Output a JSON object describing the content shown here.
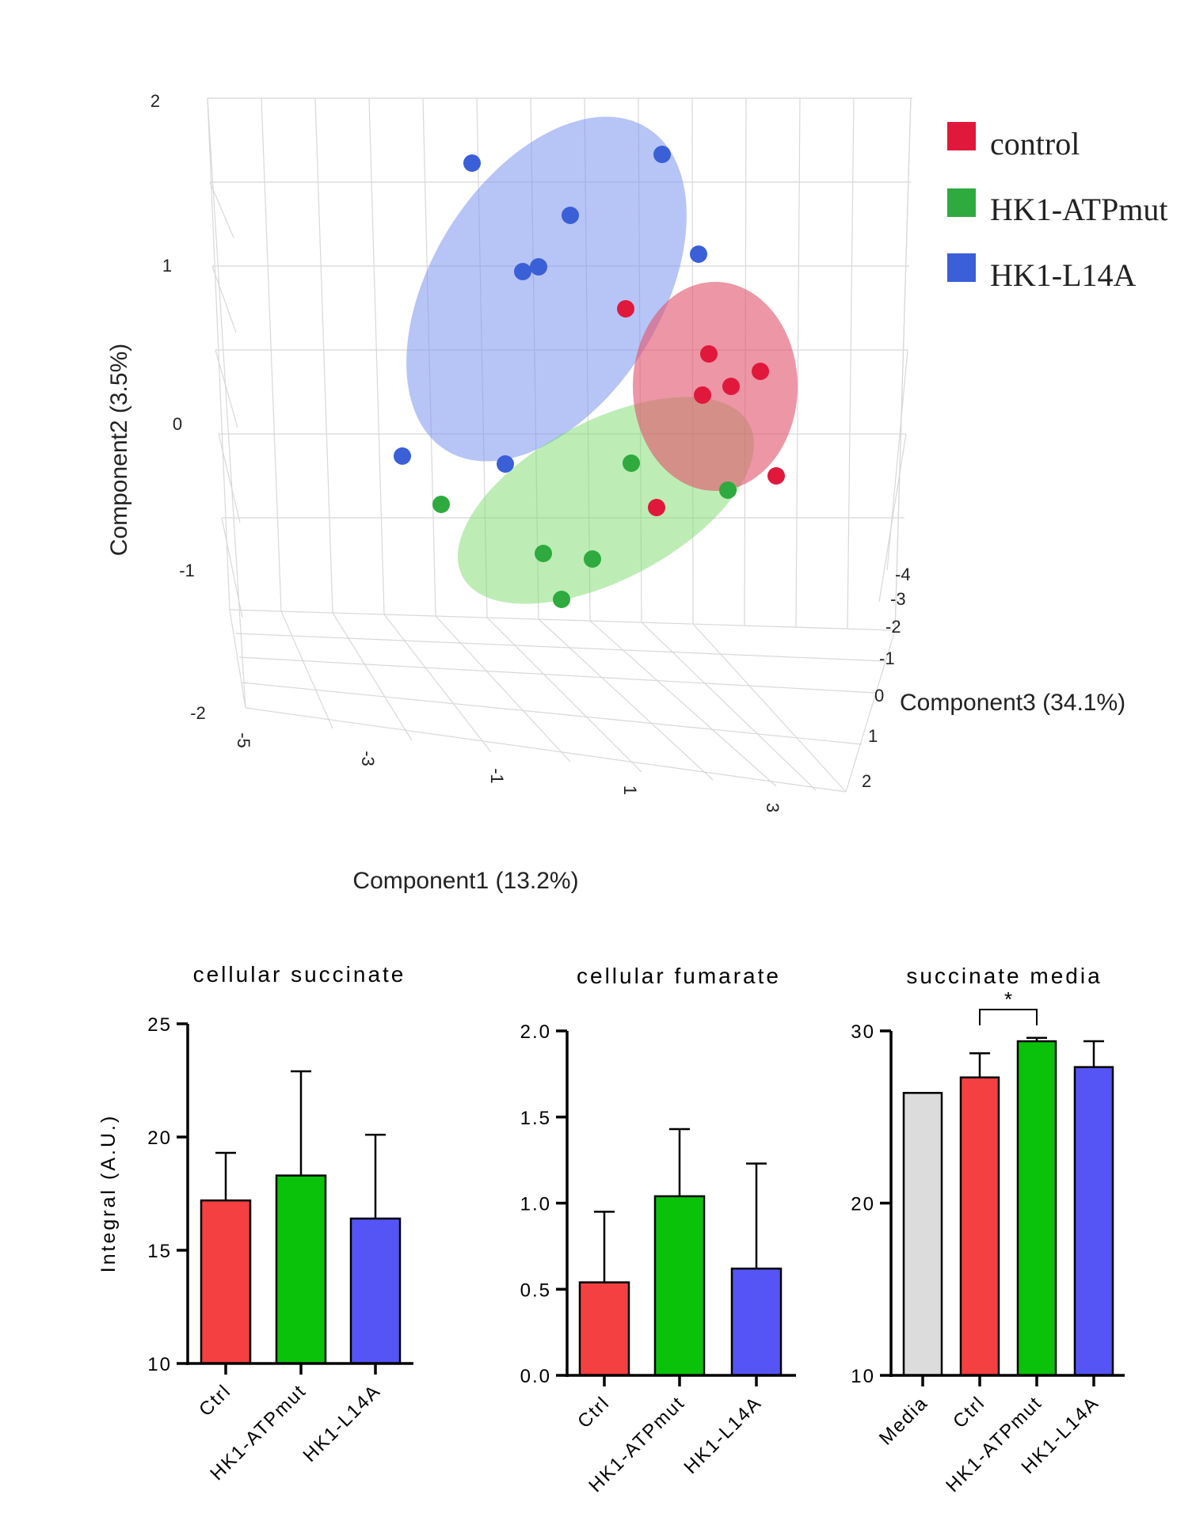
{
  "chart_data": [
    {
      "type": "scatter",
      "title": "",
      "xlabel": "Component1 (13.2%)",
      "ylabel": "Component2 (3.5%)",
      "zlabel": "Component3 (34.1%)",
      "x_ticks": [
        "-5",
        "-3",
        "-1",
        "1",
        "3"
      ],
      "y_ticks": [
        "2",
        "1",
        "0",
        "-1",
        "-2"
      ],
      "z_ticks": [
        "-4",
        "-3",
        "-2",
        "-1",
        "0",
        "1",
        "2"
      ],
      "legend": [
        "control",
        "HK1-ATPmut",
        "HK1-L14A"
      ],
      "colors": {
        "control": "#e0183c",
        "HK1-ATPmut": "#2eaa3e",
        "HK1-L14A": "#3a5fd6"
      },
      "series": [
        {
          "name": "HK1-L14A",
          "points": [
            [
              -1.8,
              1.7,
              -1.0
            ],
            [
              0.8,
              1.75,
              -1.2
            ],
            [
              -1.2,
              1.3,
              -1.0
            ],
            [
              -1.2,
              0.95,
              0.0
            ],
            [
              -1.4,
              0.95,
              -0.5
            ],
            [
              1.3,
              1.0,
              -1.0
            ],
            [
              -3.0,
              -0.2,
              1.0
            ],
            [
              -1.7,
              -0.2,
              0.0
            ]
          ]
        },
        {
          "name": "control",
          "points": [
            [
              0.2,
              0.75,
              -1.5
            ],
            [
              1.1,
              0.4,
              -0.5
            ],
            [
              1.2,
              0.2,
              -1.0
            ],
            [
              2.2,
              0.3,
              -2.0
            ],
            [
              1.0,
              0.15,
              0.5
            ],
            [
              1.8,
              -0.15,
              -3.0
            ],
            [
              0.5,
              -0.5,
              1.0
            ]
          ]
        },
        {
          "name": "HK1-ATPmut",
          "points": [
            [
              -2.4,
              -0.4,
              1.5
            ],
            [
              0.0,
              -0.15,
              0.5
            ],
            [
              1.5,
              -0.5,
              -0.5
            ],
            [
              -0.7,
              -0.75,
              1.5
            ],
            [
              -0.3,
              -0.85,
              1.0
            ],
            [
              -0.5,
              -1.0,
              2.0
            ]
          ]
        }
      ]
    },
    {
      "type": "bar",
      "title": "cellular succinate",
      "ylabel": "Integral (A.U.)",
      "categories": [
        "Ctrl",
        "HK1-ATPmut",
        "HK1-L14A"
      ],
      "values": [
        17.2,
        18.3,
        16.4
      ],
      "errors": [
        2.1,
        4.6,
        3.7
      ],
      "colors": [
        "#f44040",
        "#0ac20a",
        "#5555f5"
      ],
      "ylim": [
        10,
        25
      ],
      "yticks": [
        "10",
        "15",
        "20",
        "25"
      ]
    },
    {
      "type": "bar",
      "title": "cellular fumarate",
      "ylabel": "",
      "categories": [
        "Ctrl",
        "HK1-ATPmut",
        "HK1-L14A"
      ],
      "values": [
        0.54,
        1.04,
        0.62
      ],
      "errors": [
        0.41,
        0.39,
        0.61
      ],
      "colors": [
        "#f44040",
        "#0ac20a",
        "#5555f5"
      ],
      "ylim": [
        0.0,
        2.0
      ],
      "yticks": [
        "0.0",
        "0.5",
        "1.0",
        "1.5",
        "2.0"
      ]
    },
    {
      "type": "bar",
      "title": "succinate media",
      "ylabel": "",
      "categories": [
        "Media",
        "Ctrl",
        "HK1-ATPmut",
        "HK1-L14A"
      ],
      "values": [
        26.4,
        27.3,
        29.4,
        27.9
      ],
      "errors": [
        0,
        1.4,
        0.2,
        1.5
      ],
      "colors": [
        "#dcdcdc",
        "#f44040",
        "#0ac20a",
        "#5555f5"
      ],
      "ylim": [
        10,
        30
      ],
      "yticks": [
        "10",
        "20",
        "30"
      ],
      "significance": {
        "from": "Ctrl",
        "to": "HK1-ATPmut",
        "label": "*"
      }
    }
  ]
}
